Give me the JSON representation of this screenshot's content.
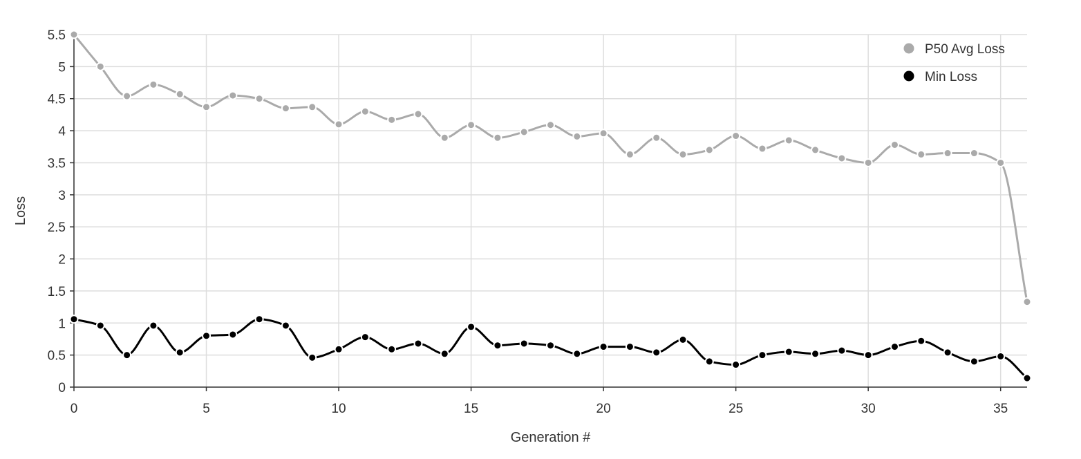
{
  "chart_data": {
    "type": "line",
    "xlabel": "Generation #",
    "ylabel": "Loss",
    "xlim": [
      0,
      36
    ],
    "ylim": [
      0,
      5.5
    ],
    "x_ticks": [
      0,
      5,
      10,
      15,
      20,
      25,
      30,
      35
    ],
    "y_ticks": [
      0,
      0.5,
      1,
      1.5,
      2,
      2.5,
      3,
      3.5,
      4,
      4.5,
      5,
      5.5
    ],
    "grid": true,
    "legend_position": "top-right",
    "x": [
      0,
      1,
      2,
      3,
      4,
      5,
      6,
      7,
      8,
      9,
      10,
      11,
      12,
      13,
      14,
      15,
      16,
      17,
      18,
      19,
      20,
      21,
      22,
      23,
      24,
      25,
      26,
      27,
      28,
      29,
      30,
      31,
      32,
      33,
      34,
      35,
      36
    ],
    "series": [
      {
        "name": "P50 Avg Loss",
        "color": "#aaaaaa",
        "values": [
          5.5,
          5.0,
          4.54,
          4.72,
          4.57,
          4.37,
          4.55,
          4.5,
          4.35,
          4.37,
          4.1,
          4.3,
          4.17,
          4.26,
          3.89,
          4.09,
          3.89,
          3.98,
          4.09,
          3.91,
          3.96,
          3.63,
          3.89,
          3.63,
          3.7,
          3.92,
          3.72,
          3.85,
          3.7,
          3.57,
          3.5,
          3.78,
          3.63,
          3.65,
          3.65,
          3.5,
          1.33
        ]
      },
      {
        "name": "Min Loss",
        "color": "#000000",
        "values": [
          1.06,
          0.96,
          0.5,
          0.96,
          0.54,
          0.8,
          0.82,
          1.06,
          0.96,
          0.46,
          0.59,
          0.78,
          0.59,
          0.68,
          0.52,
          0.94,
          0.65,
          0.68,
          0.65,
          0.52,
          0.63,
          0.63,
          0.54,
          0.74,
          0.4,
          0.35,
          0.5,
          0.55,
          0.52,
          0.57,
          0.5,
          0.63,
          0.72,
          0.54,
          0.4,
          0.48,
          0.14
        ]
      }
    ]
  }
}
